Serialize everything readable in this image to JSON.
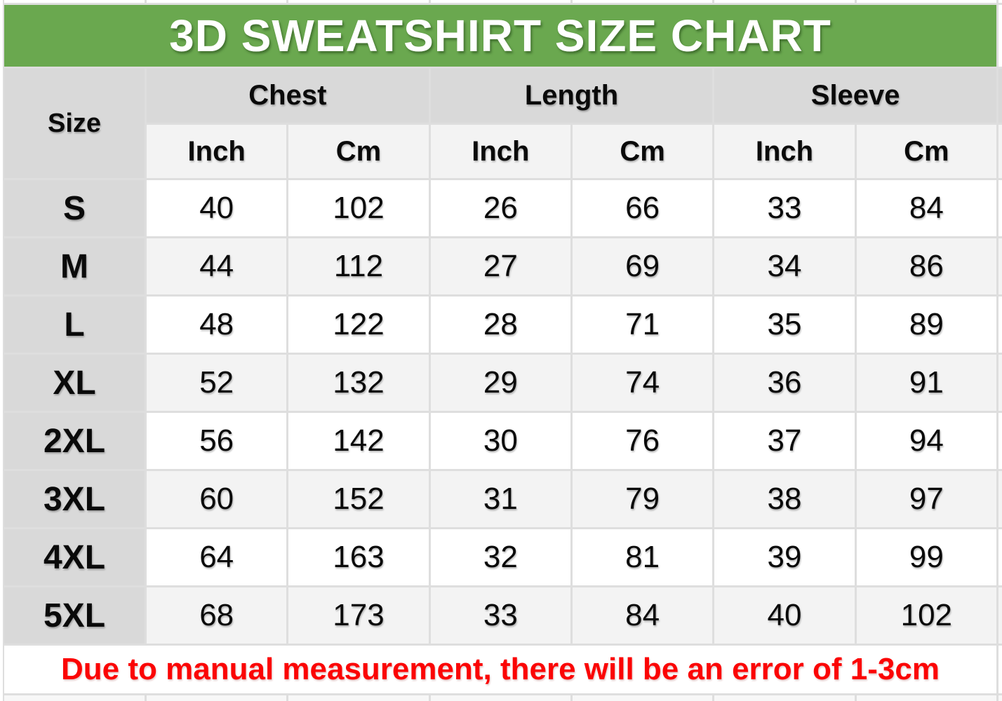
{
  "title": "3D SWEATSHIRT SIZE CHART",
  "note": "Due to manual measurement, there will be an error of 1-3cm",
  "colors": {
    "title_bg": "#6aa84f",
    "title_text": "#ffffff",
    "header_bg": "#d9d9d9",
    "unit_bg": "#f3f3f3",
    "row_bg": "#ffffff",
    "row_alt_bg": "#f3f3f3",
    "note_text": "#fb0404",
    "grid_line": "#dedede"
  },
  "table": {
    "size_header": "Size",
    "groups": [
      {
        "label": "Chest"
      },
      {
        "label": "Length"
      },
      {
        "label": "Sleeve"
      }
    ],
    "unit_headers": [
      "Inch",
      "Cm",
      "Inch",
      "Cm",
      "Inch",
      "Cm"
    ],
    "rows": [
      {
        "size": "S",
        "values": [
          "40",
          "102",
          "26",
          "66",
          "33",
          "84"
        ]
      },
      {
        "size": "M",
        "values": [
          "44",
          "112",
          "27",
          "69",
          "34",
          "86"
        ]
      },
      {
        "size": "L",
        "values": [
          "48",
          "122",
          "28",
          "71",
          "35",
          "89"
        ]
      },
      {
        "size": "XL",
        "values": [
          "52",
          "132",
          "29",
          "74",
          "36",
          "91"
        ]
      },
      {
        "size": "2XL",
        "values": [
          "56",
          "142",
          "30",
          "76",
          "37",
          "94"
        ]
      },
      {
        "size": "3XL",
        "values": [
          "60",
          "152",
          "31",
          "79",
          "38",
          "97"
        ]
      },
      {
        "size": "4XL",
        "values": [
          "64",
          "163",
          "32",
          "81",
          "39",
          "99"
        ]
      },
      {
        "size": "5XL",
        "values": [
          "68",
          "173",
          "33",
          "84",
          "40",
          "102"
        ]
      }
    ]
  },
  "chart_data": {
    "type": "table",
    "title": "3D SWEATSHIRT SIZE CHART",
    "columns": [
      "Size",
      "Chest Inch",
      "Chest Cm",
      "Length Inch",
      "Length Cm",
      "Sleeve Inch",
      "Sleeve Cm"
    ],
    "rows": [
      [
        "S",
        40,
        102,
        26,
        66,
        33,
        84
      ],
      [
        "M",
        44,
        112,
        27,
        69,
        34,
        86
      ],
      [
        "L",
        48,
        122,
        28,
        71,
        35,
        89
      ],
      [
        "XL",
        52,
        132,
        29,
        74,
        36,
        91
      ],
      [
        "2XL",
        56,
        142,
        30,
        76,
        37,
        94
      ],
      [
        "3XL",
        60,
        152,
        31,
        79,
        38,
        97
      ],
      [
        "4XL",
        64,
        163,
        32,
        81,
        39,
        99
      ],
      [
        "5XL",
        68,
        173,
        33,
        84,
        40,
        102
      ]
    ],
    "note": "Due to manual measurement, there will be an error of 1-3cm"
  }
}
